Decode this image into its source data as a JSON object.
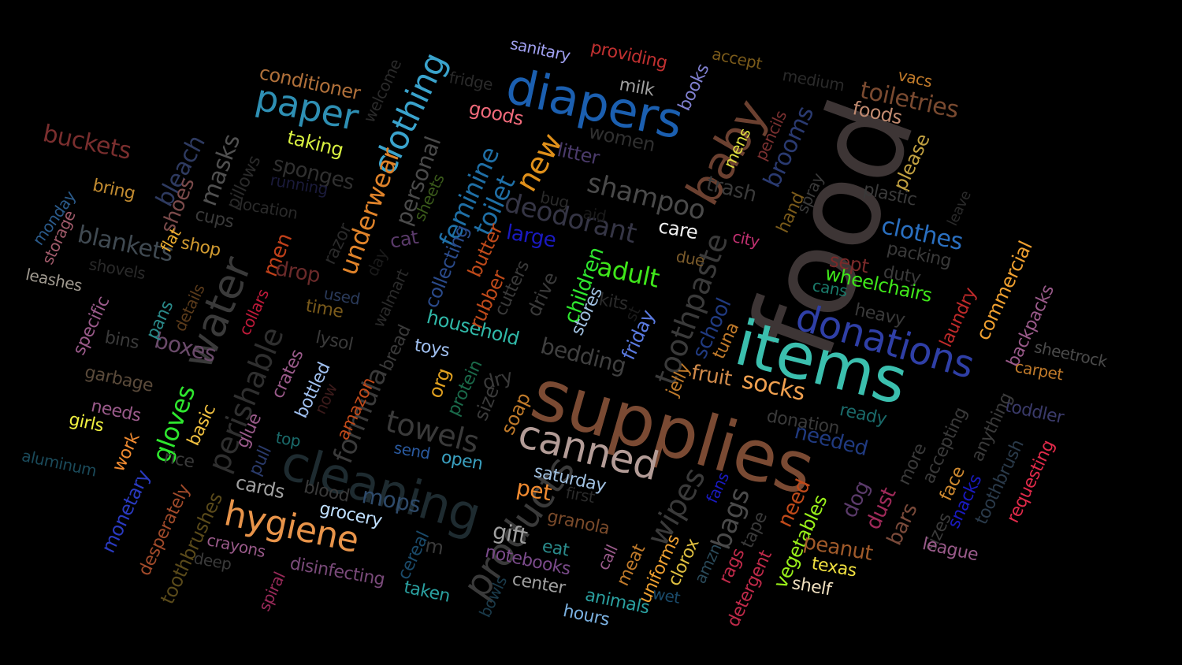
{
  "background_color": "#000000",
  "words": [
    {
      "text": "food",
      "color": "#3d3535"
    },
    {
      "text": "supplies",
      "color": "#7a4a33"
    },
    {
      "text": "items",
      "color": "#3bbfae"
    },
    {
      "text": "cleaning",
      "color": "#1e2b30"
    },
    {
      "text": "diapers",
      "color": "#1b5fb0"
    },
    {
      "text": "baby",
      "color": "#6b4030"
    },
    {
      "text": "canned",
      "color": "#b39c97"
    },
    {
      "text": "donations",
      "color": "#2f3fa6"
    },
    {
      "text": "products",
      "color": "#3a3a3a"
    },
    {
      "text": "water",
      "color": "#3a3a3a"
    },
    {
      "text": "paper",
      "color": "#2e8fb3"
    },
    {
      "text": "clothing",
      "color": "#3aa3cc"
    },
    {
      "text": "hygiene",
      "color": "#e8944a"
    },
    {
      "text": "perishable",
      "color": "#2f2f2f"
    },
    {
      "text": "towels",
      "color": "#3a3a3a"
    },
    {
      "text": "wipes",
      "color": "#3a3a3a"
    },
    {
      "text": "toothpaste",
      "color": "#3a3a3a"
    },
    {
      "text": "shampoo",
      "color": "#4a4a4a"
    },
    {
      "text": "deodorant",
      "color": "#353545"
    },
    {
      "text": "new",
      "color": "#e0901a"
    },
    {
      "text": "feminine",
      "color": "#1f6fa6"
    },
    {
      "text": "toilet",
      "color": "#1f6fa6"
    },
    {
      "text": "underwear",
      "color": "#e0832a"
    },
    {
      "text": "personal",
      "color": "#4a4a4a"
    },
    {
      "text": "formula",
      "color": "#3a3a3a"
    },
    {
      "text": "bags",
      "color": "#4a4a4a"
    },
    {
      "text": "socks",
      "color": "#f0a050"
    },
    {
      "text": "clothes",
      "color": "#2a6fc0"
    },
    {
      "text": "adult",
      "color": "#3fe61a"
    },
    {
      "text": "gloves",
      "color": "#2ee62e"
    },
    {
      "text": "blankets",
      "color": "#404a52"
    },
    {
      "text": "masks",
      "color": "#505050"
    },
    {
      "text": "bleach",
      "color": "#2e3a60"
    },
    {
      "text": "buckets",
      "color": "#7a2e2e"
    },
    {
      "text": "brooms",
      "color": "#2a3a70"
    },
    {
      "text": "toiletries",
      "color": "#7a4a30"
    },
    {
      "text": "mops",
      "color": "#2e4a6a"
    },
    {
      "text": "bedding",
      "color": "#404040"
    },
    {
      "text": "household",
      "color": "#30b8a8"
    },
    {
      "text": "school",
      "color": "#203a80"
    },
    {
      "text": "needed",
      "color": "#203a80"
    },
    {
      "text": "trash",
      "color": "#3a3a3a"
    },
    {
      "text": "large",
      "color": "#1a1ac0"
    },
    {
      "text": "children",
      "color": "#2ee62e"
    },
    {
      "text": "fruit",
      "color": "#d08a4a"
    },
    {
      "text": "pet",
      "color": "#f08a30"
    },
    {
      "text": "boxes",
      "color": "#6a4a6a"
    },
    {
      "text": "sponges",
      "color": "#303030"
    },
    {
      "text": "conditioner",
      "color": "#b0703a"
    },
    {
      "text": "taking",
      "color": "#d8f040"
    },
    {
      "text": "sanitary",
      "color": "#a0a0f0"
    },
    {
      "text": "providing",
      "color": "#c03030"
    },
    {
      "text": "accept",
      "color": "#7a5a1a"
    },
    {
      "text": "vacs",
      "color": "#c07a2a"
    },
    {
      "text": "foods",
      "color": "#c08a70"
    },
    {
      "text": "please",
      "color": "#c0a040"
    },
    {
      "text": "goods",
      "color": "#f06a7a"
    },
    {
      "text": "milk",
      "color": "#a0a0a0"
    },
    {
      "text": "books",
      "color": "#8080d0"
    },
    {
      "text": "women",
      "color": "#303030"
    },
    {
      "text": "litter",
      "color": "#4a3a6a"
    },
    {
      "text": "fridge",
      "color": "#2a2a2a"
    },
    {
      "text": "welcome",
      "color": "#2a2a2a"
    },
    {
      "text": "medium",
      "color": "#2a2a2a"
    },
    {
      "text": "pencils",
      "color": "#7a3030"
    },
    {
      "text": "mens",
      "color": "#e0e040"
    },
    {
      "text": "spray",
      "color": "#3a3a3a"
    },
    {
      "text": "hand",
      "color": "#7a5a1a"
    },
    {
      "text": "plastic",
      "color": "#3a3a3a"
    },
    {
      "text": "leave",
      "color": "#2a2a2a"
    },
    {
      "text": "shoes",
      "color": "#7a4a4a"
    },
    {
      "text": "pillows",
      "color": "#2a2a2a"
    },
    {
      "text": "bring",
      "color": "#c08a30"
    },
    {
      "text": "running",
      "color": "#1a1a3a"
    },
    {
      "text": "location",
      "color": "#2a2a2a"
    },
    {
      "text": "monday",
      "color": "#2a5a8a"
    },
    {
      "text": "storage",
      "color": "#a05a6a"
    },
    {
      "text": "cups",
      "color": "#3a3a3a"
    },
    {
      "text": "flat",
      "color": "#f0b030"
    },
    {
      "text": "shop",
      "color": "#d09a30"
    },
    {
      "text": "men",
      "color": "#c0401a"
    },
    {
      "text": "razor",
      "color": "#2a2a2a"
    },
    {
      "text": "day",
      "color": "#1a1a1a"
    },
    {
      "text": "cat",
      "color": "#5a3a6a"
    },
    {
      "text": "sheets",
      "color": "#3a5a1a"
    },
    {
      "text": "collecting",
      "color": "#2a4a8a"
    },
    {
      "text": "butter",
      "color": "#c04a1a"
    },
    {
      "text": "bug",
      "color": "#2a2a2a"
    },
    {
      "text": "aid",
      "color": "#1a1a1a"
    },
    {
      "text": "care",
      "color": "#f0f0f0"
    },
    {
      "text": "due",
      "color": "#7a5a2a"
    },
    {
      "text": "city",
      "color": "#c03070"
    },
    {
      "text": "sept",
      "color": "#7a2a2a"
    },
    {
      "text": "packing",
      "color": "#3a3a3a"
    },
    {
      "text": "duty",
      "color": "#3a3a3a"
    },
    {
      "text": "cans",
      "color": "#1a7a6a"
    },
    {
      "text": "wheelchairs",
      "color": "#3fe61a"
    },
    {
      "text": "heavy",
      "color": "#3a3a3a"
    },
    {
      "text": "laundry",
      "color": "#c02a2a"
    },
    {
      "text": "commercial",
      "color": "#f0a030"
    },
    {
      "text": "backpacks",
      "color": "#9a5a8a"
    },
    {
      "text": "sheetrock",
      "color": "#4a4a4a"
    },
    {
      "text": "carpet",
      "color": "#c07a2a"
    },
    {
      "text": "toddler",
      "color": "#3a3a6a"
    },
    {
      "text": "shovels",
      "color": "#2a2a2a"
    },
    {
      "text": "leashes",
      "color": "#a09a90"
    },
    {
      "text": "drop",
      "color": "#6a2a2a"
    },
    {
      "text": "details",
      "color": "#5a3a1a"
    },
    {
      "text": "time",
      "color": "#7a5a1a"
    },
    {
      "text": "used",
      "color": "#2a3a5a"
    },
    {
      "text": "walmart",
      "color": "#2a2a2a"
    },
    {
      "text": "rubber",
      "color": "#c04a1a"
    },
    {
      "text": "cutters",
      "color": "#3a3a3a"
    },
    {
      "text": "drive",
      "color": "#3a3a3a"
    },
    {
      "text": "stores",
      "color": "#a0c0e0"
    },
    {
      "text": "kits",
      "color": "#2a2a2a"
    },
    {
      "text": "st",
      "color": "#1a1a1a"
    },
    {
      "text": "friday",
      "color": "#5a7ae0"
    },
    {
      "text": "tuna",
      "color": "#c07a2a"
    },
    {
      "text": "jelly",
      "color": "#c07a2a"
    },
    {
      "text": "specific",
      "color": "#9a5a8a"
    },
    {
      "text": "pans",
      "color": "#2a8a8a"
    },
    {
      "text": "collars",
      "color": "#c01a3a"
    },
    {
      "text": "bins",
      "color": "#3a3a3a"
    },
    {
      "text": "lysol",
      "color": "#3a3a3a"
    },
    {
      "text": "bread",
      "color": "#3a3a3a"
    },
    {
      "text": "toys",
      "color": "#a0c0f0"
    },
    {
      "text": "protein",
      "color": "#1a6a4a"
    },
    {
      "text": "dry",
      "color": "#3a3a3a"
    },
    {
      "text": "org",
      "color": "#e0a020"
    },
    {
      "text": "size",
      "color": "#3a3a3a"
    },
    {
      "text": "soap",
      "color": "#c07a2a"
    },
    {
      "text": "crates",
      "color": "#9a5a8a"
    },
    {
      "text": "garbage",
      "color": "#5a4a3a"
    },
    {
      "text": "bottled",
      "color": "#a0c0f0"
    },
    {
      "text": "amazon",
      "color": "#c04a1a"
    },
    {
      "text": "now",
      "color": "#3a1a1a"
    },
    {
      "text": "top",
      "color": "#1a6a6a"
    },
    {
      "text": "needs",
      "color": "#9a5a8a"
    },
    {
      "text": "girls",
      "color": "#f0f040"
    },
    {
      "text": "basic",
      "color": "#f0c040"
    },
    {
      "text": "glue",
      "color": "#9a5a8a"
    },
    {
      "text": "pull",
      "color": "#2a3a6a"
    },
    {
      "text": "work",
      "color": "#f08a30"
    },
    {
      "text": "rice",
      "color": "#3a3a3a"
    },
    {
      "text": "aluminum",
      "color": "#1a4a5a"
    },
    {
      "text": "monetary",
      "color": "#2a3ac0"
    },
    {
      "text": "desperately",
      "color": "#a04a2a"
    },
    {
      "text": "toothbrushes",
      "color": "#5a4a1a"
    },
    {
      "text": "cards",
      "color": "#a0a0a0"
    },
    {
      "text": "blood",
      "color": "#3a3a3a"
    },
    {
      "text": "grocery",
      "color": "#c0e0ff"
    },
    {
      "text": "send",
      "color": "#2a5aa0"
    },
    {
      "text": "open",
      "color": "#3aa0c0"
    },
    {
      "text": "saturday",
      "color": "#a0c0e0"
    },
    {
      "text": "first",
      "color": "#2a2a2a"
    },
    {
      "text": "granola",
      "color": "#7a4a2a"
    },
    {
      "text": "gift",
      "color": "#a0a0a0"
    },
    {
      "text": "eat",
      "color": "#2a8a8a"
    },
    {
      "text": "call",
      "color": "#9a5a8a"
    },
    {
      "text": "meat",
      "color": "#c07a2a"
    },
    {
      "text": "uniforms",
      "color": "#f0a030"
    },
    {
      "text": "clorox",
      "color": "#e0c040"
    },
    {
      "text": "fans",
      "color": "#1a1ac0"
    },
    {
      "text": "amzn",
      "color": "#2a4a5a"
    },
    {
      "text": "rags",
      "color": "#c02a4a"
    },
    {
      "text": "tape",
      "color": "#3a3a3a"
    },
    {
      "text": "need",
      "color": "#c04a1a"
    },
    {
      "text": "detergent",
      "color": "#c02a4a"
    },
    {
      "text": "vegetables",
      "color": "#9af01a"
    },
    {
      "text": "peanut",
      "color": "#a05a2a"
    },
    {
      "text": "texas",
      "color": "#f0e040"
    },
    {
      "text": "shelf",
      "color": "#f0e0c0"
    },
    {
      "text": "dog",
      "color": "#5a3a6a"
    },
    {
      "text": "dust",
      "color": "#a02a5a"
    },
    {
      "text": "bars",
      "color": "#7a4a3a"
    },
    {
      "text": "more",
      "color": "#3a3a3a"
    },
    {
      "text": "accepting",
      "color": "#3a3a3a"
    },
    {
      "text": "sizes",
      "color": "#3a3a3a"
    },
    {
      "text": "face",
      "color": "#d08a30"
    },
    {
      "text": "anything",
      "color": "#3a3a3a"
    },
    {
      "text": "snacks",
      "color": "#1a1ac0"
    },
    {
      "text": "toothbrush",
      "color": "#2a3a4a"
    },
    {
      "text": "requesting",
      "color": "#e02a4a"
    },
    {
      "text": "league",
      "color": "#9a5a8a"
    },
    {
      "text": "ready",
      "color": "#1a6a6a"
    },
    {
      "text": "donation",
      "color": "#3a3a3a"
    },
    {
      "text": "crayons",
      "color": "#9a5a8a"
    },
    {
      "text": "deep",
      "color": "#3a3a3a"
    },
    {
      "text": "spiral",
      "color": "#9a2a5a"
    },
    {
      "text": "disinfecting",
      "color": "#7a4a7a"
    },
    {
      "text": "cereal",
      "color": "#1a4a6a"
    },
    {
      "text": "m",
      "color": "#3a3a3a"
    },
    {
      "text": "taken",
      "color": "#2aa0a0"
    },
    {
      "text": "notebooks",
      "color": "#7a4a8a"
    },
    {
      "text": "center",
      "color": "#a0a0a0"
    },
    {
      "text": "bowls",
      "color": "#1a3a4a"
    },
    {
      "text": "hours",
      "color": "#7ab0e0"
    },
    {
      "text": "animals",
      "color": "#2aa0a0"
    },
    {
      "text": "wet",
      "color": "#1a4a6a"
    }
  ]
}
